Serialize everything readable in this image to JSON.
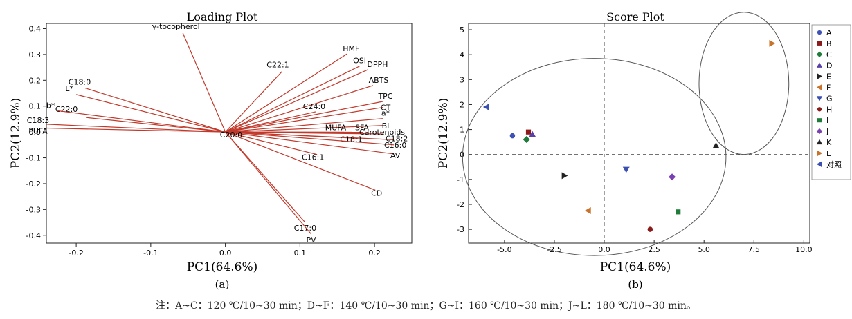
{
  "chart_data": [
    {
      "type": "scatter",
      "subtype": "loading-plot-vectors",
      "title": "Loading Plot",
      "xlabel": "PC1(64.6%)",
      "ylabel": "PC2(12.9%)",
      "caption": "(a)",
      "xlim": [
        -0.24,
        0.25
      ],
      "ylim": [
        -0.43,
        0.42
      ],
      "xticks": [
        "-0.2",
        "-0.1",
        "0.0",
        "0.1",
        "0.2"
      ],
      "yticks": [
        "0.4",
        "0.3",
        "0.2",
        "0.1",
        "0.0",
        "-0.1",
        "-0.2",
        "-0.3",
        "-0.4"
      ],
      "xtick_values": [
        -0.2,
        -0.1,
        0.0,
        0.1,
        0.2
      ],
      "ytick_values": [
        0.4,
        0.3,
        0.2,
        0.1,
        0.0,
        -0.1,
        -0.2,
        -0.3,
        -0.4
      ],
      "vector_color": "#c0392b",
      "grid": false,
      "vectors": [
        {
          "label": "γ-tocopherol",
          "x": -0.057,
          "y": 0.383
        },
        {
          "label": "HMF",
          "x": 0.163,
          "y": 0.302
        },
        {
          "label": "C22:1",
          "x": 0.076,
          "y": 0.234
        },
        {
          "label": "OSI",
          "x": 0.18,
          "y": 0.255
        },
        {
          "label": "DPPH",
          "x": 0.191,
          "y": 0.241
        },
        {
          "label": "ABTS",
          "x": 0.198,
          "y": 0.18
        },
        {
          "label": "TPC",
          "x": 0.211,
          "y": 0.118
        },
        {
          "label": "CT",
          "x": 0.211,
          "y": 0.095
        },
        {
          "label": "C24:0",
          "x": 0.121,
          "y": 0.078
        },
        {
          "label": "a*",
          "x": 0.211,
          "y": 0.052
        },
        {
          "label": "BI",
          "x": 0.211,
          "y": 0.025
        },
        {
          "label": "MUFA",
          "x": 0.159,
          "y": -0.001
        },
        {
          "label": "SFA",
          "x": 0.185,
          "y": -0.001
        },
        {
          "label": "Carotenoids",
          "x": 0.212,
          "y": -0.008
        },
        {
          "label": "C18:2",
          "x": 0.226,
          "y": -0.03
        },
        {
          "label": "C18:1",
          "x": 0.178,
          "y": -0.025
        },
        {
          "label": "C16:0",
          "x": 0.226,
          "y": -0.05
        },
        {
          "label": "AV",
          "x": 0.226,
          "y": -0.085
        },
        {
          "label": "C16:1",
          "x": 0.123,
          "y": -0.087
        },
        {
          "label": "CD",
          "x": 0.201,
          "y": -0.225
        },
        {
          "label": "C17:0",
          "x": 0.107,
          "y": -0.35
        },
        {
          "label": "PV",
          "x": 0.115,
          "y": -0.395
        },
        {
          "label": "C18:0",
          "x": -0.188,
          "y": 0.17
        },
        {
          "label": "L*",
          "x": -0.2,
          "y": 0.145
        },
        {
          "label": "C22:0",
          "x": -0.187,
          "y": 0.056
        },
        {
          "label": "b*",
          "x": -0.225,
          "y": 0.082
        },
        {
          "label": "C18:3",
          "x": -0.24,
          "y": 0.03
        },
        {
          "label": "PUFA",
          "x": -0.24,
          "y": 0.015
        },
        {
          "label": "C20:0",
          "x": 0.005,
          "y": -0.008
        }
      ]
    },
    {
      "type": "scatter",
      "title": "Score Plot",
      "xlabel": "PC1(64.6%)",
      "ylabel": "PC2(12.9%)",
      "caption": "(b)",
      "xlim": [
        -6.8,
        10.3
      ],
      "ylim": [
        -3.55,
        5.25
      ],
      "xticks": [
        "-5.0",
        "-2.5",
        "0.0",
        "2.5",
        "5.0",
        "7.5",
        "10.0"
      ],
      "yticks": [
        "5",
        "4",
        "3",
        "2",
        "1",
        "0",
        "-1",
        "-2",
        "-3"
      ],
      "xtick_values": [
        -5,
        -2.5,
        0,
        2.5,
        5,
        7.5,
        10
      ],
      "ytick_values": [
        5,
        4,
        3,
        2,
        1,
        0,
        -1,
        -2,
        -3
      ],
      "reference_lines": {
        "x": 0,
        "y": 0,
        "style": "dashed"
      },
      "grid": false,
      "legend_position": "right",
      "points": [
        {
          "label": "A",
          "x": -4.6,
          "y": 0.75,
          "marker": "circle",
          "color": "#3f51b5"
        },
        {
          "label": "B",
          "x": -3.8,
          "y": 0.9,
          "marker": "square",
          "color": "#8b1a1a"
        },
        {
          "label": "C",
          "x": -3.9,
          "y": 0.6,
          "marker": "diamond",
          "color": "#1e7b3a"
        },
        {
          "label": "D",
          "x": -3.6,
          "y": 0.8,
          "marker": "triangle-up",
          "color": "#5b3fa8"
        },
        {
          "label": "E",
          "x": -2.0,
          "y": -0.85,
          "marker": "triangle-right",
          "color": "#222222"
        },
        {
          "label": "F",
          "x": -0.8,
          "y": -2.25,
          "marker": "triangle-left",
          "color": "#c8732a"
        },
        {
          "label": "G",
          "x": 1.1,
          "y": -0.6,
          "marker": "triangle-down",
          "color": "#3a4fb0"
        },
        {
          "label": "H",
          "x": 2.3,
          "y": -3.0,
          "marker": "circle",
          "color": "#8b1a1a"
        },
        {
          "label": "I",
          "x": 3.7,
          "y": -2.3,
          "marker": "square",
          "color": "#1e7b3a"
        },
        {
          "label": "J",
          "x": 3.4,
          "y": -0.9,
          "marker": "diamond",
          "color": "#7b3fb0"
        },
        {
          "label": "K",
          "x": 5.6,
          "y": 0.35,
          "marker": "triangle-up",
          "color": "#222222"
        },
        {
          "label": "L",
          "x": 8.4,
          "y": 4.45,
          "marker": "triangle-right",
          "color": "#c8732a"
        },
        {
          "label": "对照",
          "x": -5.9,
          "y": 1.9,
          "marker": "triangle-left",
          "color": "#3a4fb0"
        }
      ],
      "ellipses": [
        {
          "cx": -0.5,
          "cy": -0.1,
          "rx": 6.6,
          "ry": 3.95
        },
        {
          "cx": 7.0,
          "cy": 2.85,
          "rx": 2.25,
          "ry": 2.85
        }
      ]
    }
  ],
  "footnote": "注：A~C：120 ℃/10~30 min；D~F：140 ℃/10~30 min；G~I：160 ℃/10~30 min；J~L：180 ℃/10~30 min。"
}
